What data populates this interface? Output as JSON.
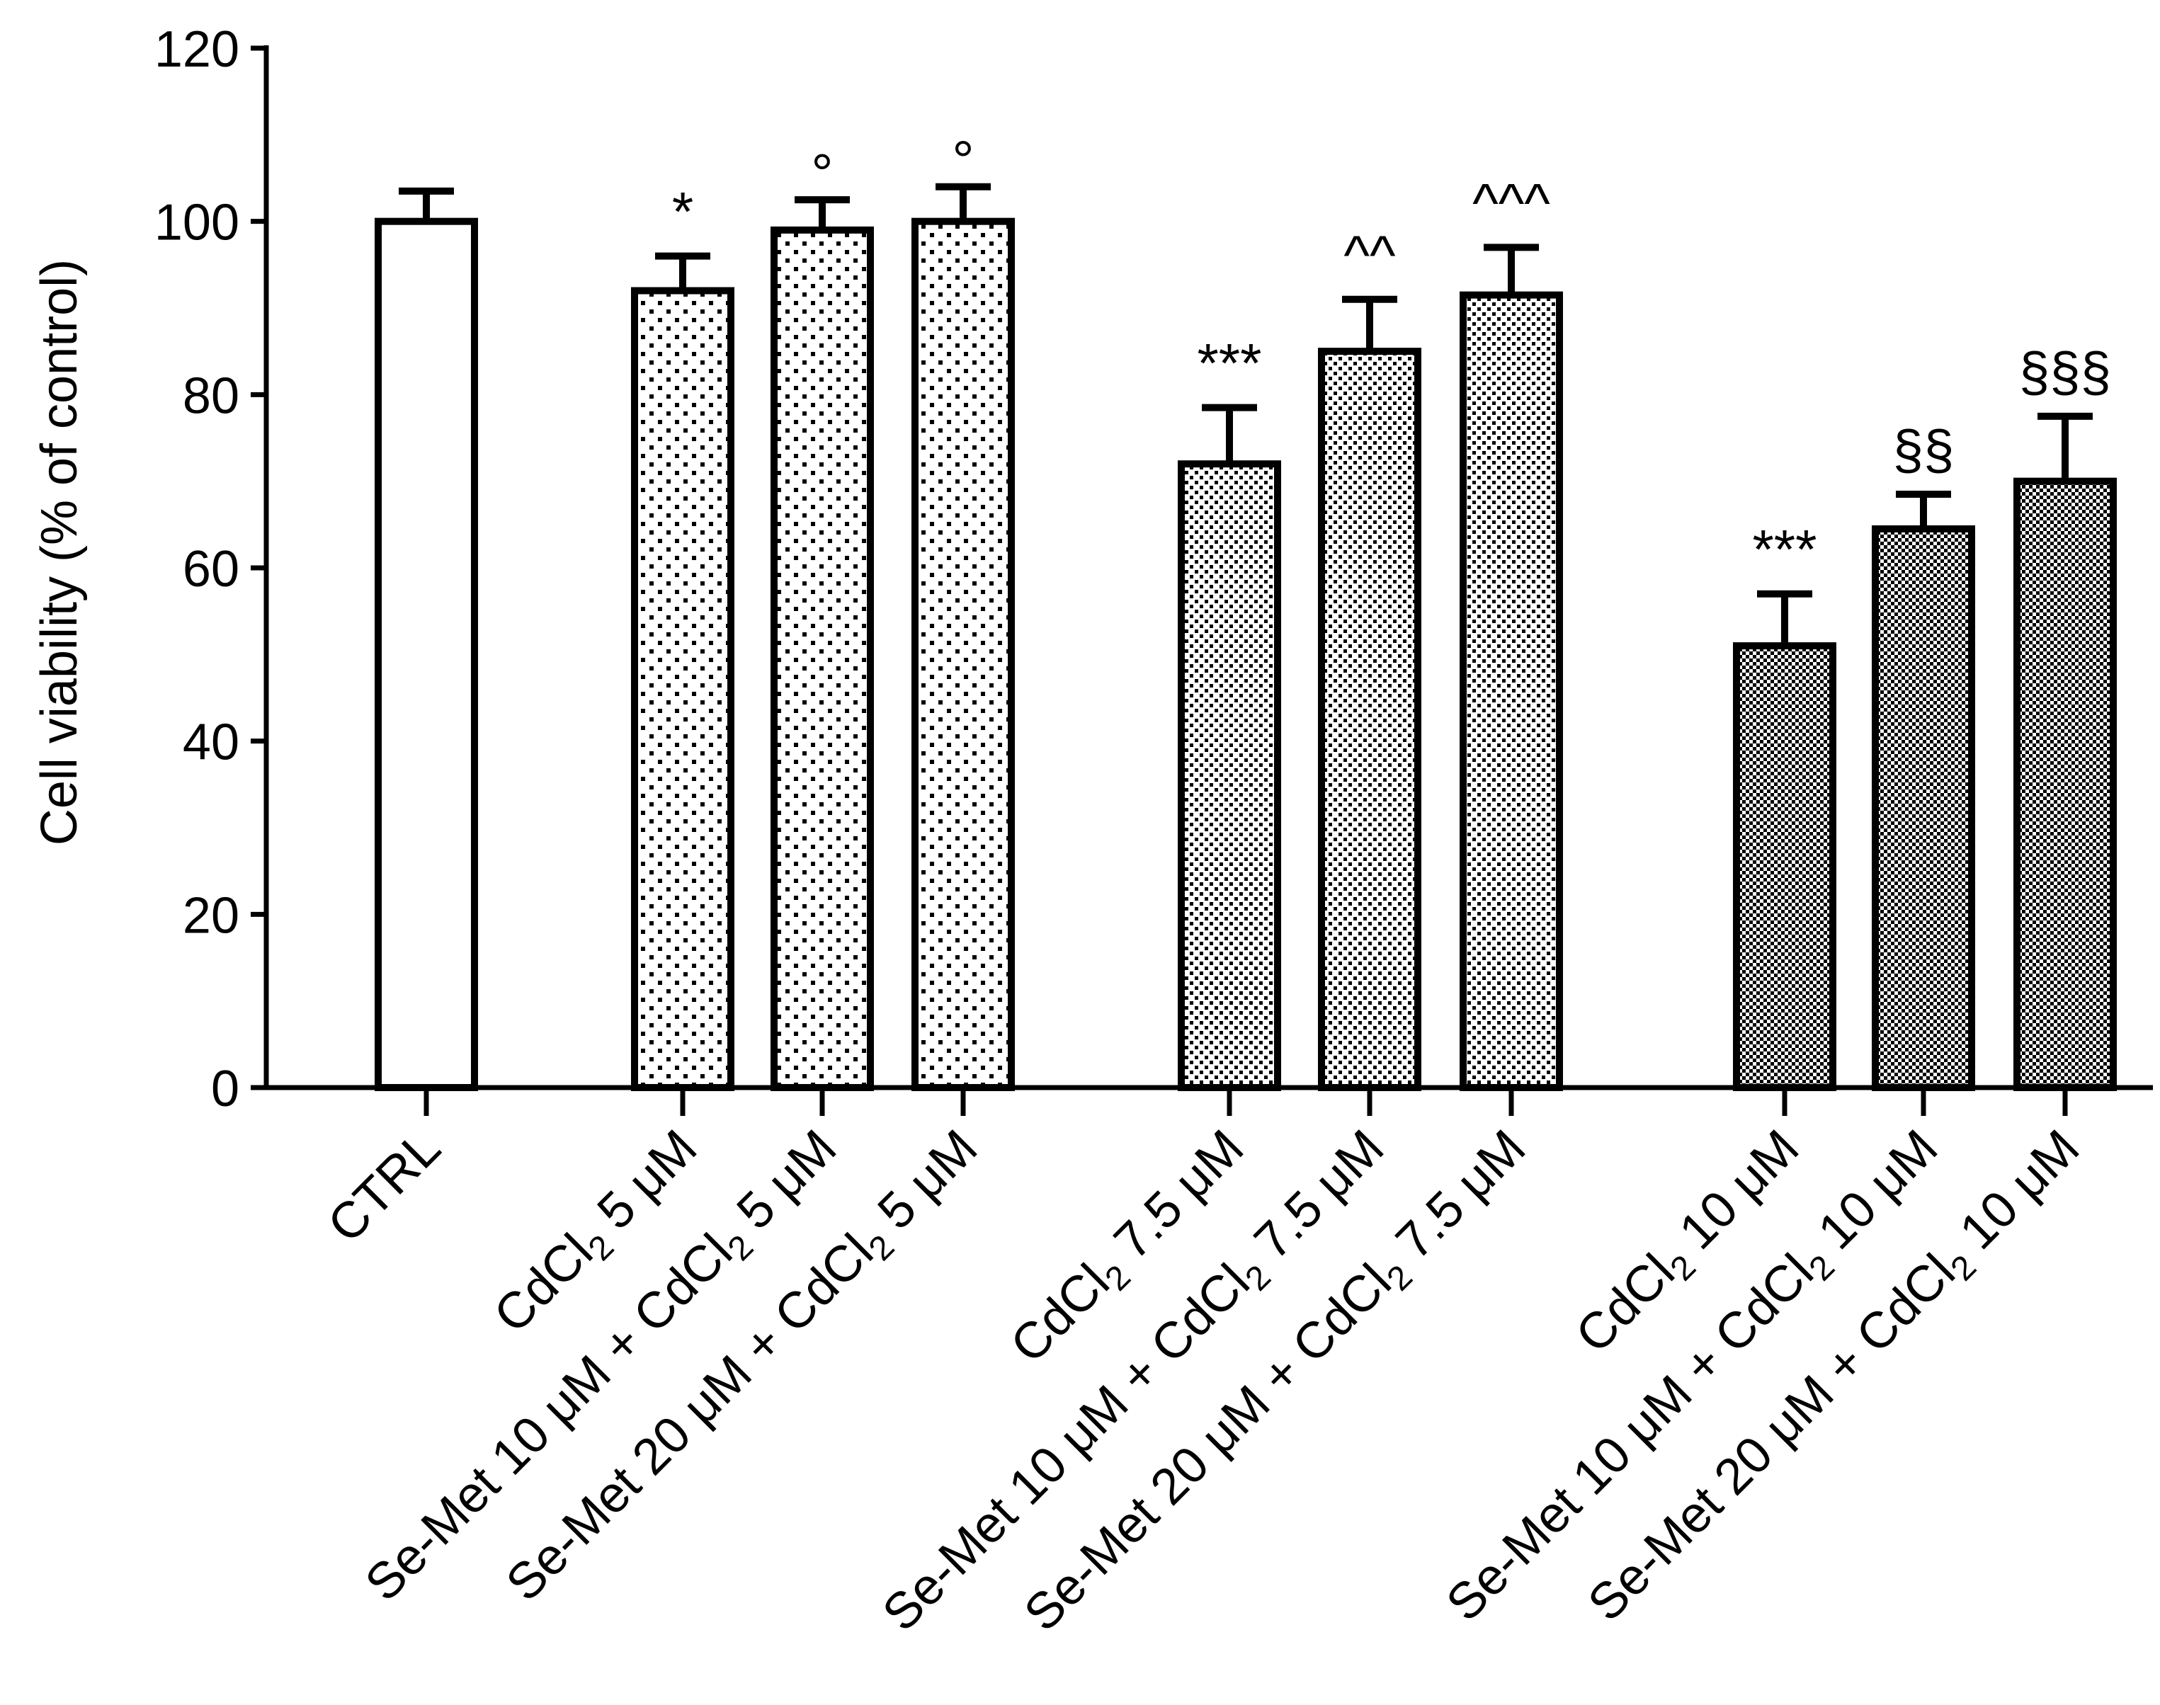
{
  "chart_data": {
    "type": "bar",
    "title": "",
    "xlabel": "",
    "ylabel": "Cell viability (% of control)",
    "ylim": [
      0,
      120
    ],
    "yticks": [
      0,
      20,
      40,
      60,
      80,
      100,
      120
    ],
    "grid": false,
    "colors": {
      "axis": "#000000",
      "bar_stroke": "#000000",
      "background": "#ffffff"
    },
    "bars": [
      {
        "label": "CTRL",
        "label_parts": [
          {
            "t": "CTRL"
          }
        ],
        "value": 100,
        "error": 3.5,
        "pattern": "none",
        "annotation": ""
      },
      {
        "label": "CdCl2 5 μM",
        "label_parts": [
          {
            "t": "CdCl"
          },
          {
            "t": "2",
            "sub": true
          },
          {
            "t": " 5 μM"
          }
        ],
        "value": 92,
        "error": 4,
        "pattern": "sparse",
        "annotation": "*"
      },
      {
        "label": "Se-Met 10 μM + CdCl2 5 μM",
        "label_parts": [
          {
            "t": "Se-Met 10 μM + CdCl"
          },
          {
            "t": "2",
            "sub": true
          },
          {
            "t": " 5 μM"
          }
        ],
        "value": 99,
        "error": 3.5,
        "pattern": "sparse",
        "annotation": "°"
      },
      {
        "label": "Se-Met 20 μM + CdCl2 5 μM",
        "label_parts": [
          {
            "t": "Se-Met 20 μM + CdCl"
          },
          {
            "t": "2",
            "sub": true
          },
          {
            "t": " 5 μM"
          }
        ],
        "value": 100,
        "error": 4,
        "pattern": "sparse",
        "annotation": "°"
      },
      {
        "label": "CdCl2 7.5 μM",
        "label_parts": [
          {
            "t": "CdCl"
          },
          {
            "t": "2",
            "sub": true
          },
          {
            "t": " 7.5 μM"
          }
        ],
        "value": 72,
        "error": 6.5,
        "pattern": "medium",
        "annotation": "***"
      },
      {
        "label": "Se-Met 10 μM + CdCl2 7.5 μM",
        "label_parts": [
          {
            "t": "Se-Met 10 μM + CdCl"
          },
          {
            "t": "2",
            "sub": true
          },
          {
            "t": " 7.5 μM"
          }
        ],
        "value": 85,
        "error": 6,
        "pattern": "medium",
        "annotation": "^^"
      },
      {
        "label": "Se-Met 20 μM + CdCl2 7.5 μM",
        "label_parts": [
          {
            "t": "Se-Met 20 μM + CdCl"
          },
          {
            "t": "2",
            "sub": true
          },
          {
            "t": " 7.5 μM"
          }
        ],
        "value": 91.5,
        "error": 5.5,
        "pattern": "medium",
        "annotation": "^^^"
      },
      {
        "label": "CdCl2 10 μM",
        "label_parts": [
          {
            "t": "CdCl"
          },
          {
            "t": "2",
            "sub": true
          },
          {
            "t": " 10 μM"
          }
        ],
        "value": 51,
        "error": 6,
        "pattern": "dense",
        "annotation": "***"
      },
      {
        "label": "Se-Met 10 μM + CdCl2 10 μM",
        "label_parts": [
          {
            "t": "Se-Met 10 μM + CdCl"
          },
          {
            "t": "2",
            "sub": true
          },
          {
            "t": " 10 μM"
          }
        ],
        "value": 64.5,
        "error": 4,
        "pattern": "dense",
        "annotation": "§§"
      },
      {
        "label": "Se-Met 20 μM + CdCl2 10 μM",
        "label_parts": [
          {
            "t": "Se-Met 20 μM + CdCl"
          },
          {
            "t": "2",
            "sub": true
          },
          {
            "t": " 10 μM"
          }
        ],
        "value": 70,
        "error": 7.5,
        "pattern": "dense",
        "annotation": "§§§"
      }
    ]
  }
}
